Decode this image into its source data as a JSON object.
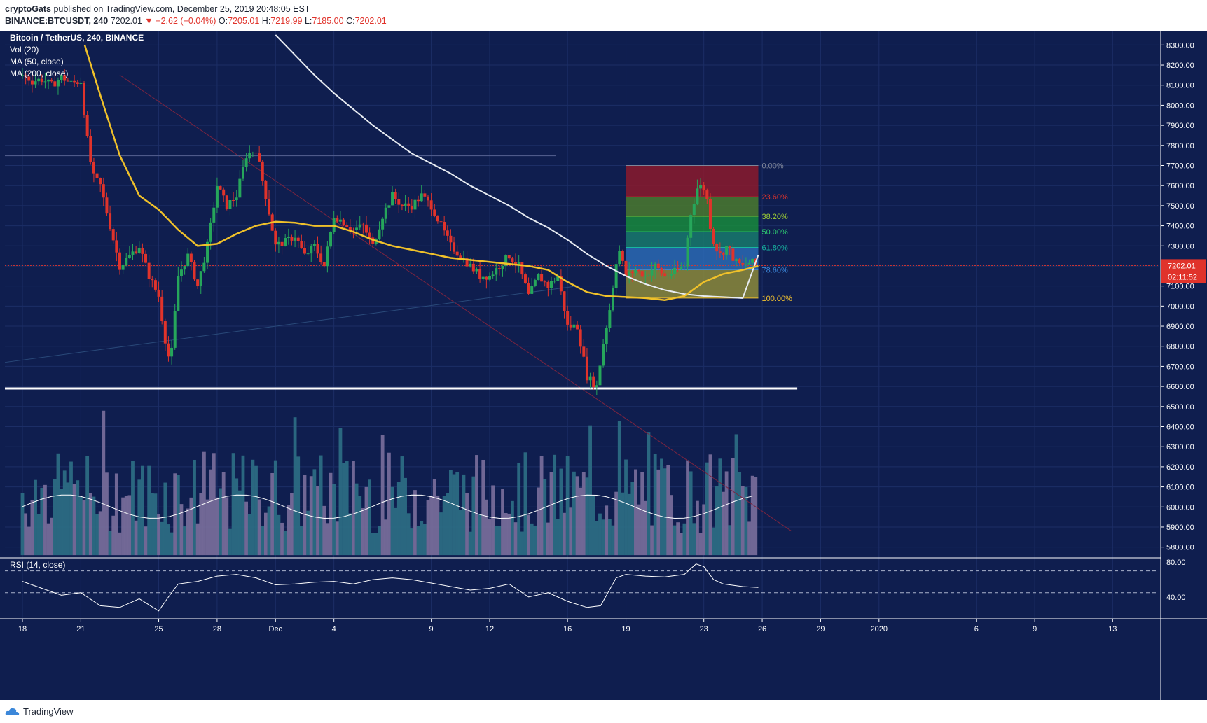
{
  "header": {
    "publisher": "cryptoGats",
    "published_line": " published on TradingView.com, December 25, 2019 20:48:05 EST",
    "symbol": "BINANCE:BTCUSDT",
    "interval": ", 240 ",
    "last": "7202.01",
    "change": "−2.62 (−0.04%)",
    "o_label": "O:",
    "o": "7205.01",
    "h_label": "H:",
    "h": "7219.99",
    "l_label": "L:",
    "l": "7185.00",
    "c_label": "C:",
    "c": "7202.01"
  },
  "legend": {
    "title": "Bitcoin / TetherUS, 240, BINANCE",
    "vol": "Vol (20)",
    "ma50": "MA (50, close)",
    "ma200": "MA (200, close)"
  },
  "rsi_label": "RSI (14, close)",
  "price_tag": "7202.01",
  "countdown": "02:11:52",
  "footer_brand": "TradingView",
  "colors": {
    "background": "#0f1e4f",
    "bull": "#26a65b",
    "bear": "#e0332b",
    "ma50": "#f0c12a",
    "ma200": "#e8ecf2",
    "volume": "#6a6f9a",
    "support_line": "#ffffff"
  },
  "chart_data": {
    "type": "candlestick",
    "symbol": "BTCUSDT",
    "exchange": "BINANCE",
    "interval": "240",
    "ylim": [
      5750,
      8350
    ],
    "price_ticks": [
      5800,
      5900,
      6000,
      6100,
      6200,
      6300,
      6400,
      6500,
      6600,
      6700,
      6800,
      6900,
      7000,
      7100,
      7200,
      7300,
      7400,
      7500,
      7600,
      7700,
      7800,
      7900,
      8000,
      8100,
      8200,
      8300
    ],
    "price_tick_labels": [
      "5800.00",
      "5900.00",
      "6000.00",
      "6100.00",
      "6200.00",
      "6300.00",
      "6400.00",
      "6500.00",
      "6600.00",
      "6700.00",
      "6800.00",
      "6900.00",
      "7000.00",
      "7100.00",
      "7200.00",
      "7300.00",
      "7400.00",
      "7500.00",
      "7600.00",
      "7700.00",
      "7800.00",
      "7900.00",
      "8000.00",
      "8100.00",
      "8200.00",
      "8300.00"
    ],
    "x_ticks": [
      {
        "day": 0,
        "label": "18"
      },
      {
        "day": 3,
        "label": "21"
      },
      {
        "day": 7,
        "label": "25"
      },
      {
        "day": 10,
        "label": "28"
      },
      {
        "day": 13,
        "label": "Dec"
      },
      {
        "day": 16,
        "label": "4"
      },
      {
        "day": 21,
        "label": "9"
      },
      {
        "day": 24,
        "label": "12"
      },
      {
        "day": 28,
        "label": "16"
      },
      {
        "day": 31,
        "label": "19"
      },
      {
        "day": 35,
        "label": "23"
      },
      {
        "day": 38,
        "label": "26"
      },
      {
        "day": 41,
        "label": "29"
      },
      {
        "day": 44,
        "label": "2020"
      },
      {
        "day": 49,
        "label": "6"
      },
      {
        "day": 52,
        "label": "9"
      },
      {
        "day": 56,
        "label": "13"
      }
    ],
    "x_range_days": [
      -0.9,
      58.4
    ],
    "close_path": [
      [
        0,
        8150
      ],
      [
        0.5,
        8120
      ],
      [
        1,
        8130
      ],
      [
        1.5,
        8100
      ],
      [
        2,
        8140
      ],
      [
        2.5,
        8110
      ],
      [
        3,
        8120
      ],
      [
        3.3,
        7850
      ],
      [
        3.6,
        7650
      ],
      [
        4,
        7600
      ],
      [
        4.5,
        7400
      ],
      [
        5,
        7200
      ],
      [
        5.5,
        7250
      ],
      [
        6,
        7300
      ],
      [
        6.5,
        7150
      ],
      [
        7,
        7050
      ],
      [
        7.3,
        6850
      ],
      [
        7.6,
        6700
      ],
      [
        8,
        7150
      ],
      [
        8.5,
        7250
      ],
      [
        9,
        7100
      ],
      [
        9.5,
        7300
      ],
      [
        10,
        7600
      ],
      [
        10.5,
        7500
      ],
      [
        11,
        7550
      ],
      [
        11.5,
        7750
      ],
      [
        12,
        7780
      ],
      [
        12.5,
        7550
      ],
      [
        13,
        7300
      ],
      [
        13.5,
        7320
      ],
      [
        14,
        7350
      ],
      [
        14.5,
        7250
      ],
      [
        15,
        7300
      ],
      [
        15.5,
        7200
      ],
      [
        16,
        7450
      ],
      [
        16.5,
        7420
      ],
      [
        17,
        7380
      ],
      [
        17.5,
        7400
      ],
      [
        18,
        7300
      ],
      [
        18.5,
        7450
      ],
      [
        19,
        7550
      ],
      [
        19.5,
        7500
      ],
      [
        20,
        7500
      ],
      [
        20.5,
        7550
      ],
      [
        21,
        7500
      ],
      [
        21.5,
        7400
      ],
      [
        22,
        7300
      ],
      [
        22.5,
        7250
      ],
      [
        23,
        7200
      ],
      [
        23.5,
        7150
      ],
      [
        24,
        7150
      ],
      [
        24.5,
        7200
      ],
      [
        25,
        7250
      ],
      [
        25.5,
        7200
      ],
      [
        26,
        7050
      ],
      [
        26.5,
        7150
      ],
      [
        27,
        7100
      ],
      [
        27.5,
        7150
      ],
      [
        28,
        6900
      ],
      [
        28.5,
        6900
      ],
      [
        29,
        6650
      ],
      [
        29.5,
        6600
      ],
      [
        29.8,
        6800
      ],
      [
        30.2,
        7000
      ],
      [
        30.6,
        7300
      ],
      [
        31,
        7150
      ],
      [
        31.5,
        7180
      ],
      [
        32,
        7150
      ],
      [
        32.5,
        7200
      ],
      [
        33,
        7150
      ],
      [
        33.5,
        7170
      ],
      [
        34,
        7200
      ],
      [
        34.3,
        7450
      ],
      [
        34.7,
        7600
      ],
      [
        35.1,
        7580
      ],
      [
        35.4,
        7350
      ],
      [
        35.8,
        7250
      ],
      [
        36.2,
        7300
      ],
      [
        36.6,
        7220
      ],
      [
        37,
        7200
      ],
      [
        37.4,
        7220
      ],
      [
        37.8,
        7202
      ]
    ],
    "ma50": [
      [
        3.2,
        8300
      ],
      [
        4,
        8050
      ],
      [
        5,
        7750
      ],
      [
        6,
        7550
      ],
      [
        7,
        7480
      ],
      [
        8,
        7380
      ],
      [
        9,
        7300
      ],
      [
        10,
        7310
      ],
      [
        11,
        7360
      ],
      [
        12,
        7400
      ],
      [
        13,
        7420
      ],
      [
        14,
        7415
      ],
      [
        15,
        7400
      ],
      [
        16,
        7400
      ],
      [
        17,
        7370
      ],
      [
        18,
        7330
      ],
      [
        19,
        7300
      ],
      [
        20,
        7280
      ],
      [
        21,
        7260
      ],
      [
        22,
        7240
      ],
      [
        23,
        7230
      ],
      [
        24,
        7220
      ],
      [
        25,
        7210
      ],
      [
        26,
        7200
      ],
      [
        27,
        7180
      ],
      [
        28,
        7120
      ],
      [
        29,
        7070
      ],
      [
        30,
        7050
      ],
      [
        31,
        7045
      ],
      [
        32,
        7040
      ],
      [
        33,
        7030
      ],
      [
        34,
        7050
      ],
      [
        35,
        7120
      ],
      [
        36,
        7160
      ],
      [
        37,
        7180
      ],
      [
        37.8,
        7200
      ]
    ],
    "ma200": [
      [
        13,
        8350
      ],
      [
        14,
        8250
      ],
      [
        15,
        8150
      ],
      [
        16,
        8060
      ],
      [
        17,
        7980
      ],
      [
        18,
        7900
      ],
      [
        19,
        7830
      ],
      [
        20,
        7760
      ],
      [
        21,
        7710
      ],
      [
        22,
        7660
      ],
      [
        23,
        7600
      ],
      [
        24,
        7550
      ],
      [
        25,
        7500
      ],
      [
        26,
        7440
      ],
      [
        27,
        7390
      ],
      [
        28,
        7330
      ],
      [
        29,
        7260
      ],
      [
        30,
        7200
      ],
      [
        31,
        7150
      ],
      [
        32,
        7110
      ],
      [
        33,
        7080
      ],
      [
        34,
        7060
      ],
      [
        35,
        7050
      ],
      [
        36,
        7045
      ],
      [
        37,
        7040
      ],
      [
        37.8,
        7255
      ]
    ],
    "horizontal_levels": [
      {
        "name": "resistance",
        "price": 7750,
        "from_day": -0.9,
        "to_day": 27.4
      },
      {
        "name": "support",
        "price": 6590,
        "from_day": -0.9,
        "to_day": 39.8
      }
    ],
    "fibonacci": {
      "from_day": 31,
      "to_day": 37.8,
      "high": 7700,
      "low": 7040,
      "levels": [
        {
          "ratio": 0.0,
          "label": "0.00%",
          "color": "#7f8699"
        },
        {
          "ratio": 0.236,
          "label": "23.60%",
          "color": "#e0332b"
        },
        {
          "ratio": 0.382,
          "label": "38.20%",
          "color": "#9ecf34"
        },
        {
          "ratio": 0.5,
          "label": "50.00%",
          "color": "#2ecc71"
        },
        {
          "ratio": 0.618,
          "label": "61.80%",
          "color": "#18b6a2"
        },
        {
          "ratio": 0.786,
          "label": "78.60%",
          "color": "#3b86d9"
        },
        {
          "ratio": 1.0,
          "label": "100.00%",
          "color": "#f2c230"
        }
      ]
    },
    "last_price": 7202.01,
    "rsi": {
      "ticks": [
        40,
        80
      ],
      "tick_labels": [
        "40.00",
        "80.00"
      ],
      "bands": [
        45,
        70
      ],
      "ylim": [
        15,
        85
      ],
      "path": [
        [
          0,
          58
        ],
        [
          1,
          50
        ],
        [
          2,
          42
        ],
        [
          3,
          45
        ],
        [
          4,
          30
        ],
        [
          5,
          28
        ],
        [
          6,
          38
        ],
        [
          7,
          24
        ],
        [
          7.5,
          40
        ],
        [
          8,
          55
        ],
        [
          9,
          58
        ],
        [
          10,
          64
        ],
        [
          11,
          66
        ],
        [
          12,
          62
        ],
        [
          13,
          54
        ],
        [
          14,
          55
        ],
        [
          15,
          57
        ],
        [
          16,
          58
        ],
        [
          17,
          55
        ],
        [
          18,
          60
        ],
        [
          19,
          62
        ],
        [
          20,
          60
        ],
        [
          21,
          56
        ],
        [
          22,
          52
        ],
        [
          23,
          48
        ],
        [
          24,
          50
        ],
        [
          25,
          55
        ],
        [
          26,
          40
        ],
        [
          27,
          45
        ],
        [
          28,
          35
        ],
        [
          29,
          28
        ],
        [
          29.7,
          30
        ],
        [
          30.5,
          62
        ],
        [
          31,
          66
        ],
        [
          32,
          64
        ],
        [
          33,
          63
        ],
        [
          34,
          66
        ],
        [
          34.6,
          78
        ],
        [
          35,
          75
        ],
        [
          35.5,
          60
        ],
        [
          36,
          55
        ],
        [
          37,
          52
        ],
        [
          37.8,
          51
        ]
      ]
    },
    "volume_ylim": [
      0,
      1.0
    ]
  }
}
